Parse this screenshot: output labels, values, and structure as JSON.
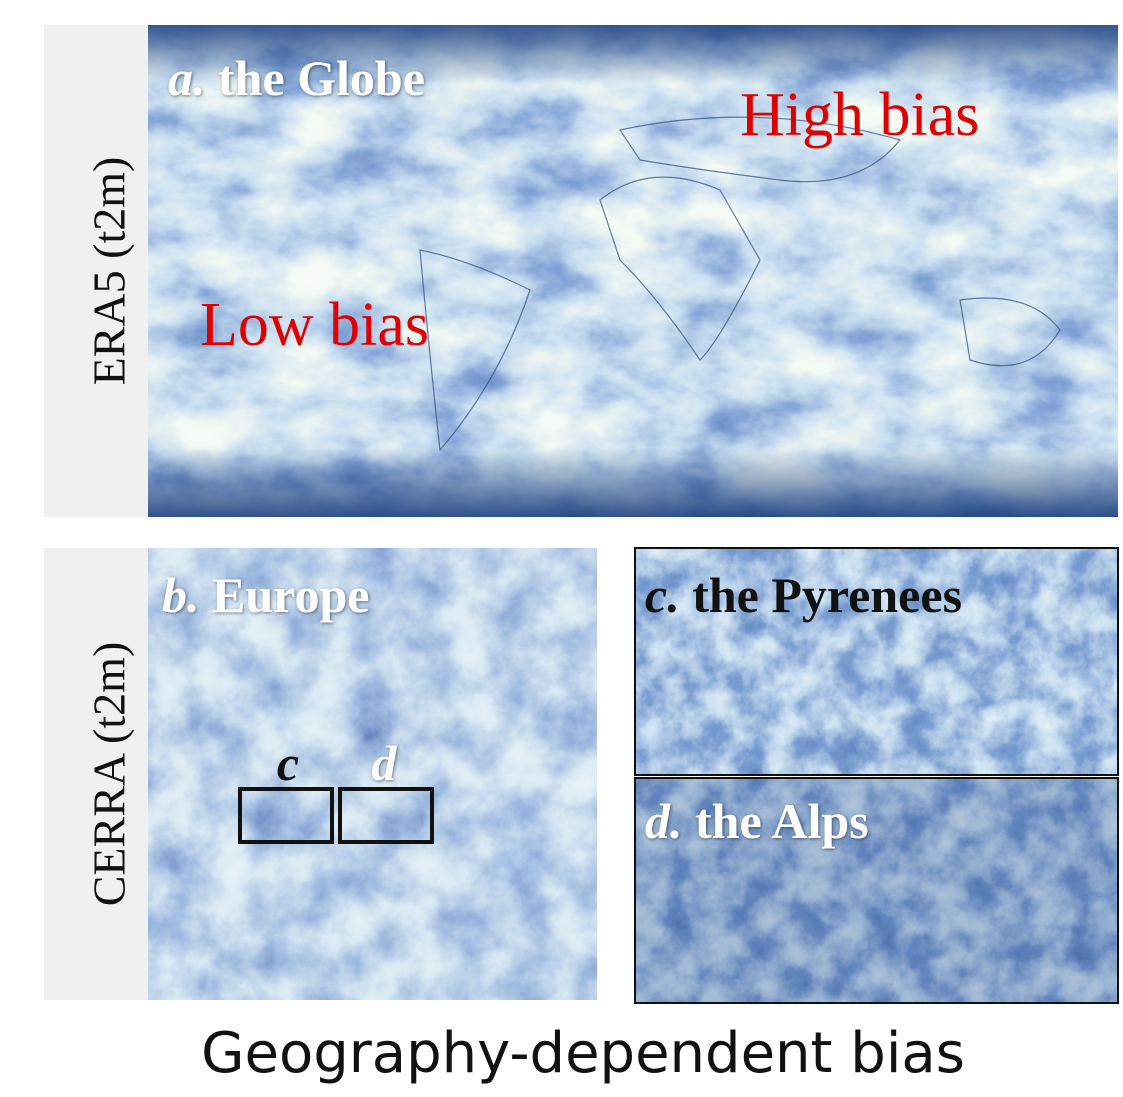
{
  "row_labels": [
    "ERA5 (t2m)",
    "CERRA (t2m)"
  ],
  "panels": [
    {
      "letter": "a.",
      "title": "the Globe",
      "annotations": [
        "High bias",
        "Low bias"
      ]
    },
    {
      "letter": "b.",
      "title": "Europe",
      "box_labels": [
        "c",
        "d"
      ]
    },
    {
      "letter": "c.",
      "title": "the Pyrenees"
    },
    {
      "letter": "d.",
      "title": "the Alps"
    }
  ],
  "caption": "Geography-dependent bias"
}
